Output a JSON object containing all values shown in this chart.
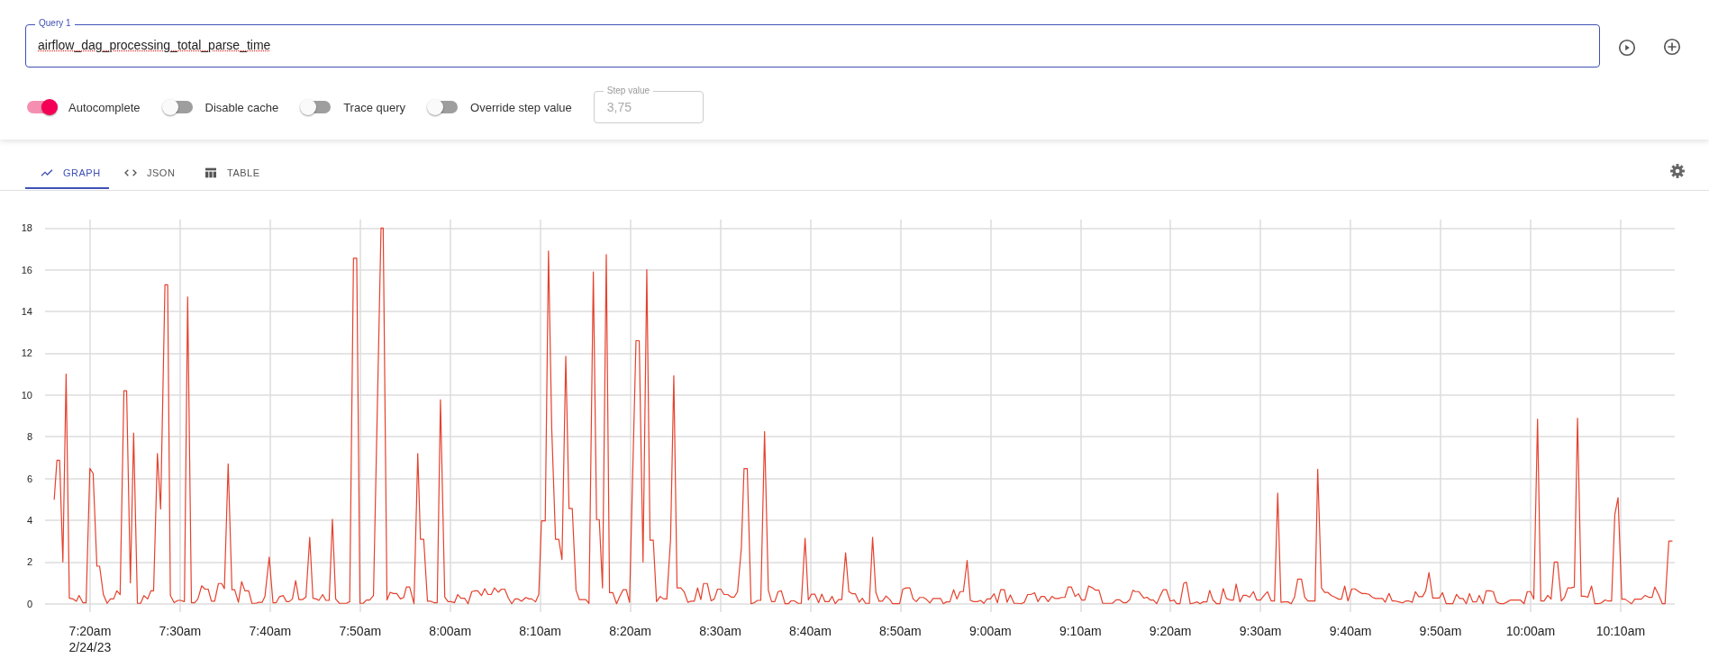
{
  "chart_data": {
    "type": "line",
    "title": "airflow_dag_processing_total_parse_time",
    "annotations": [
      "Query 1",
      "Autocomplete",
      "Disable cache",
      "Trace query",
      "Override step value",
      "Step value",
      "3,75",
      "GRAPH",
      "JSON",
      "TABLE"
    ],
    "xlim": [
      7.25,
      10.267
    ],
    "xticks": [
      {
        "value": 7.3333,
        "label": "7:20am\n2/24/23"
      },
      {
        "value": 7.5,
        "label": "7:30am"
      },
      {
        "value": 7.6667,
        "label": "7:40am"
      },
      {
        "value": 7.8333,
        "label": "7:50am"
      },
      {
        "value": 8,
        "label": "8:00am"
      },
      {
        "value": 8.1667,
        "label": "8:10am"
      },
      {
        "value": 8.3333,
        "label": "8:20am"
      },
      {
        "value": 8.5,
        "label": "8:30am"
      },
      {
        "value": 8.6667,
        "label": "8:40am"
      },
      {
        "value": 8.8333,
        "label": "8:50am"
      },
      {
        "value": 9,
        "label": "9:00am"
      },
      {
        "value": 9.1667,
        "label": "9:10am"
      },
      {
        "value": 9.3333,
        "label": "9:20am"
      },
      {
        "value": 9.5,
        "label": "9:30am"
      },
      {
        "value": 9.6667,
        "label": "9:40am"
      },
      {
        "value": 9.8333,
        "label": "9:50am"
      },
      {
        "value": 10,
        "label": "10:00am"
      },
      {
        "value": 10.1667,
        "label": "10:10am"
      }
    ],
    "ylim": [
      -0.4,
      18.4
    ],
    "yticks": [
      0,
      2,
      4,
      6,
      8,
      10,
      12,
      14,
      16,
      18
    ],
    "grid": true,
    "series": [
      {
        "color": "#e5412d",
        "x": [
          7.267,
          7.272,
          7.277,
          7.283,
          7.289,
          7.295,
          7.302,
          7.308,
          7.313,
          7.32,
          7.326,
          7.333,
          7.339,
          7.346,
          7.351,
          7.358,
          7.365,
          7.371,
          7.377,
          7.383,
          7.389,
          7.396,
          7.401,
          7.408,
          7.414,
          7.421,
          7.427,
          7.433,
          7.44,
          7.446,
          7.451,
          7.458,
          7.464,
          7.472,
          7.477,
          7.482,
          7.489,
          7.496,
          7.501,
          7.508,
          7.514,
          7.521,
          7.527,
          7.533,
          7.54,
          7.546,
          7.552,
          7.558,
          7.564,
          7.571,
          7.577,
          7.582,
          7.589,
          7.596,
          7.601,
          7.608,
          7.614,
          7.62,
          7.627,
          7.633,
          7.64,
          7.646,
          7.652,
          7.657,
          7.665,
          7.672,
          7.678,
          7.684,
          7.691,
          7.697,
          7.702,
          7.708,
          7.714,
          7.72,
          7.727,
          7.733,
          7.74,
          7.746,
          7.752,
          7.757,
          7.764,
          7.77,
          7.776,
          7.782,
          7.788,
          7.795,
          7.801,
          7.808,
          7.814,
          7.821,
          7.827,
          7.833,
          7.839,
          7.845,
          7.851,
          7.858,
          7.872,
          7.876,
          7.883,
          7.889,
          7.895,
          7.901,
          7.908,
          7.914,
          7.919,
          7.925,
          7.933,
          7.94,
          7.945,
          7.951,
          7.958,
          7.964,
          7.97,
          7.976,
          7.982,
          7.99,
          7.996,
          8.002,
          8.008,
          8.014,
          8.02,
          8.027,
          8.033,
          8.04,
          8.046,
          8.051,
          8.058,
          8.064,
          8.07,
          8.076,
          8.082,
          8.089,
          8.095,
          8.101,
          8.108,
          8.114,
          8.12,
          8.126,
          8.132,
          8.14,
          8.146,
          8.151,
          8.158,
          8.164,
          8.169,
          8.176,
          8.182,
          8.188,
          8.195,
          8.201,
          8.207,
          8.214,
          8.22,
          8.226,
          8.233,
          8.239,
          8.245,
          8.251,
          8.257,
          8.265,
          8.271,
          8.276,
          8.282,
          8.289,
          8.295,
          8.301,
          8.308,
          8.314,
          8.32,
          8.326,
          8.332,
          8.344,
          8.35,
          8.357,
          8.364,
          8.37,
          8.376,
          8.382,
          8.389,
          8.395,
          8.401,
          8.408,
          8.414,
          8.42,
          8.427,
          8.433,
          8.44,
          8.446,
          8.452,
          8.458,
          8.464,
          8.469,
          8.476,
          8.483,
          8.489,
          8.495,
          8.501,
          8.507,
          8.514,
          8.52,
          8.526,
          8.532,
          8.539,
          8.544,
          8.55,
          8.557,
          8.563,
          8.569,
          8.575,
          8.582,
          8.589,
          8.595,
          8.601,
          8.607,
          8.613,
          8.62,
          8.626,
          8.631,
          8.637,
          8.644,
          8.65,
          8.657,
          8.663,
          8.669,
          8.675,
          8.682,
          8.688,
          8.694,
          8.701,
          8.707,
          8.713,
          8.719,
          8.725,
          8.732,
          8.738,
          8.744,
          8.75,
          8.757,
          8.763,
          8.769,
          8.776,
          8.782,
          8.788,
          8.794,
          8.8,
          8.807,
          8.814,
          8.819,
          8.832,
          8.838,
          8.844,
          8.851,
          8.857,
          8.863,
          8.869,
          8.876,
          8.882,
          8.888,
          8.894,
          8.908,
          8.913,
          8.919,
          8.925,
          8.932,
          8.938,
          8.944,
          8.95,
          8.957,
          8.963,
          8.969,
          8.976,
          8.982,
          8.988,
          8.994,
          9.0,
          9.007,
          9.013,
          9.019,
          9.026,
          9.031,
          9.037,
          9.044,
          9.05,
          9.057,
          9.063,
          9.069,
          9.075,
          9.082,
          9.088,
          9.094,
          9.1,
          9.107,
          9.114,
          9.12,
          9.126,
          9.132,
          9.138,
          9.144,
          9.15,
          9.157,
          9.163,
          9.169,
          9.175,
          9.182,
          9.189,
          9.195,
          9.201,
          9.208,
          9.22,
          9.226,
          9.233,
          9.239,
          9.246,
          9.252,
          9.258,
          9.264,
          9.268,
          9.275,
          9.284,
          9.29,
          9.296,
          9.302,
          9.308,
          9.314,
          9.32,
          9.326,
          9.333,
          9.34,
          9.345,
          9.351,
          9.358,
          9.363,
          9.37,
          9.377,
          9.383,
          9.388,
          9.394,
          9.401,
          9.406,
          9.412,
          9.419,
          9.425,
          9.431,
          9.437,
          9.444,
          9.45,
          9.455,
          9.462,
          9.468,
          9.474,
          9.48,
          9.487,
          9.493,
          9.5,
          9.507,
          9.513,
          9.52,
          9.526,
          9.532,
          9.538,
          9.544,
          9.551,
          9.557,
          9.563,
          9.569,
          9.576,
          9.582,
          9.588,
          9.594,
          9.601,
          9.606,
          9.613,
          9.619,
          9.625,
          9.631,
          9.638,
          9.645,
          9.65,
          9.656,
          9.662,
          9.669,
          9.675,
          9.682,
          9.688,
          9.694,
          9.701,
          9.707,
          9.713,
          9.719,
          9.726,
          9.731,
          9.738,
          9.744,
          9.75,
          9.756,
          9.763,
          9.769,
          9.775,
          9.781,
          9.787,
          9.793,
          9.8,
          9.806,
          9.812,
          9.819,
          9.825,
          9.831,
          9.837,
          9.844,
          9.85,
          9.856,
          9.863,
          9.869,
          9.875,
          9.881,
          9.887,
          9.893,
          9.9,
          9.905,
          9.912,
          9.918,
          9.925,
          9.931,
          9.937,
          9.944,
          9.95,
          9.957,
          9.963,
          9.969,
          9.976,
          9.981,
          9.988,
          9.994,
          10.0,
          10.006,
          10.013,
          10.019,
          10.025,
          10.032,
          10.038,
          10.044,
          10.05,
          10.057,
          10.063,
          10.069,
          10.075,
          10.081,
          10.087,
          10.094,
          10.1,
          10.106,
          10.113,
          10.119,
          10.125,
          10.131,
          10.138,
          10.144,
          10.15,
          10.156,
          10.162,
          10.169,
          10.175,
          10.182,
          10.187,
          10.193,
          10.2,
          10.205,
          10.212,
          10.219,
          10.225,
          10.23,
          10.237,
          10.244,
          10.249,
          10.256,
          10.262
        ],
        "values": [
          5.0,
          6.87,
          6.87,
          2.0,
          11.0,
          0.26,
          0.23,
          0.12,
          0.4,
          0.05,
          0.05,
          6.48,
          6.24,
          1.8,
          1.8,
          0.44,
          0.02,
          0.23,
          0.23,
          0.62,
          0.44,
          10.2,
          10.2,
          1.0,
          8.18,
          0.02,
          0.02,
          0.39,
          0.23,
          0.62,
          0.62,
          7.2,
          4.54,
          15.28,
          15.28,
          0.4,
          0.05,
          0.16,
          0.16,
          0.1,
          14.7,
          0.05,
          0.05,
          0.23,
          0.86,
          0.7,
          0.7,
          0.12,
          0.12,
          0.97,
          0.97,
          0.72,
          6.7,
          0.67,
          0.67,
          0.07,
          1.06,
          0.62,
          0.62,
          0.02,
          0.02,
          0.07,
          0.07,
          0.34,
          2.24,
          0.05,
          0.05,
          0.34,
          0.39,
          0.1,
          0.1,
          0.23,
          1.11,
          0.2,
          0.2,
          0.32,
          3.18,
          0.26,
          0.23,
          0.16,
          0.44,
          0.16,
          0.16,
          4.05,
          0.23,
          0.02,
          0.02,
          0.02,
          0.1,
          16.55,
          16.55,
          0.02,
          0.02,
          0.18,
          0.18,
          0.39,
          18.0,
          18.0,
          0.18,
          0.55,
          0.49,
          0.49,
          0.23,
          0.3,
          0.8,
          0.8,
          0.0,
          7.2,
          3.09,
          3.09,
          0.12,
          0.12,
          0.05,
          0.05,
          9.77,
          0.32,
          0.1,
          0.1,
          0.05,
          0.44,
          0.26,
          0.26,
          0.0,
          0.58,
          0.62,
          0.62,
          0.39,
          0.72,
          0.44,
          0.44,
          0.76,
          0.55,
          0.7,
          0.7,
          0.26,
          0.0,
          0.23,
          0.23,
          0.12,
          0.3,
          0.23,
          0.23,
          0.09,
          0.44,
          3.97,
          3.97,
          16.9,
          8.39,
          3.09,
          3.09,
          2.12,
          11.85,
          4.56,
          4.56,
          0.65,
          0.2,
          0.2,
          0.2,
          0.02,
          15.9,
          4.03,
          4.03,
          0.76,
          16.73,
          0.53,
          0.53,
          0.0,
          0.35,
          0.67,
          0.67,
          0.07,
          12.6,
          12.6,
          2.0,
          16.0,
          3.04,
          3.04,
          0.1,
          0.35,
          0.23,
          0.23,
          3.09,
          10.92,
          0.76,
          0.76,
          0.58,
          0.07,
          0.12,
          0.12,
          0.76,
          0.2,
          0.97,
          0.97,
          0.14,
          0.23,
          0.7,
          0.7,
          0.44,
          0.44,
          0.32,
          0.32,
          0.58,
          2.65,
          6.47,
          6.47,
          0.0,
          0.05,
          0.16,
          0.16,
          8.25,
          0.65,
          0.1,
          0.1,
          0.58,
          0.62,
          0.0,
          0.0,
          0.14,
          0.14,
          0.02,
          0.02,
          3.13,
          0.18,
          0.46,
          0.46,
          0.05,
          0.46,
          0.1,
          0.1,
          0.35,
          0.0,
          0.2,
          0.2,
          2.44,
          0.58,
          0.48,
          0.48,
          0.07,
          0.26,
          0.02,
          0.02,
          3.18,
          0.55,
          0.12,
          0.12,
          0.37,
          0.2,
          0.0,
          0.0,
          0.7,
          0.76,
          0.76,
          0.23,
          0.1,
          0.3,
          0.3,
          0.2,
          0.04,
          0.25,
          0.25,
          0.0,
          0.09,
          0.09,
          0.67,
          0.23,
          0.58,
          0.58,
          2.07,
          0.16,
          0.1,
          0.1,
          0.16,
          0.02,
          0.23,
          0.23,
          0.48,
          0.05,
          0.67,
          0.67,
          0.07,
          0.42,
          0.02,
          0.02,
          0.0,
          0.07,
          0.44,
          0.44,
          0.53,
          0.1,
          0.35,
          0.35,
          0.1,
          0.35,
          0.25,
          0.25,
          0.3,
          0.3,
          0.8,
          0.8,
          0.35,
          0.48,
          0.18,
          0.18,
          0.85,
          0.76,
          0.65,
          0.65,
          0.02,
          0.02,
          0.02,
          0.19,
          0.19,
          0.05,
          0.05,
          0.19,
          0.65,
          0.58,
          0.58,
          0.27,
          0.31,
          0.18,
          0.18,
          0.0,
          0.36,
          0.67,
          0.67,
          0.13,
          0.18,
          0.0,
          0.0,
          0.98,
          1.03,
          0.0,
          0.04,
          0.09,
          0.0,
          0.09,
          0.09,
          0.64,
          0.18,
          0.0,
          0.0,
          0.73,
          0.25,
          0.18,
          0.18,
          0.94,
          0.09,
          0.4,
          0.4,
          0.31,
          0.58,
          0.18,
          0.18,
          0.4,
          0.58,
          0.13,
          0.13,
          5.3,
          0.07,
          0.09,
          0.09,
          0.0,
          0.31,
          1.18,
          1.18,
          0.31,
          0.13,
          0.13,
          0.13,
          6.44,
          0.76,
          0.54,
          0.54,
          0.4,
          0.31,
          0.22,
          0.22,
          0.85,
          0.13,
          0.71,
          0.71,
          0.58,
          0.49,
          0.49,
          0.45,
          0.31,
          0.25,
          0.25,
          0.25,
          0.07,
          0.49,
          0.13,
          0.13,
          0.09,
          0.04,
          0.13,
          0.13,
          0.07,
          0.58,
          0.34,
          0.34,
          0.62,
          1.49,
          0.27,
          0.27,
          0.27,
          0.53,
          0.0,
          0.0,
          0.0,
          0.45,
          0.25,
          0.25,
          0.0,
          0.49,
          0.09,
          0.09,
          0.4,
          0.0,
          0.62,
          0.62,
          0.58,
          0.09,
          0.0,
          0.0,
          0.09,
          0.18,
          0.18,
          0.18,
          0.18,
          0.0,
          0.58,
          0.58,
          0.22,
          8.84,
          0.13,
          0.13,
          0.4,
          0.22,
          2.0,
          2.0,
          0.13,
          0.31,
          0.76,
          0.76,
          0.8,
          8.89,
          0.36,
          0.36,
          0.31,
          0.85,
          0.0,
          0.0,
          0.04,
          0.18,
          0.13,
          0.13,
          4.26,
          5.08,
          0.22,
          0.22,
          0.09,
          0.0,
          0.22,
          0.22,
          0.22,
          0.4,
          0.31,
          0.31,
          0.8,
          0.44,
          0.0,
          0.0,
          3.0,
          3.0
        ]
      }
    ]
  }
}
